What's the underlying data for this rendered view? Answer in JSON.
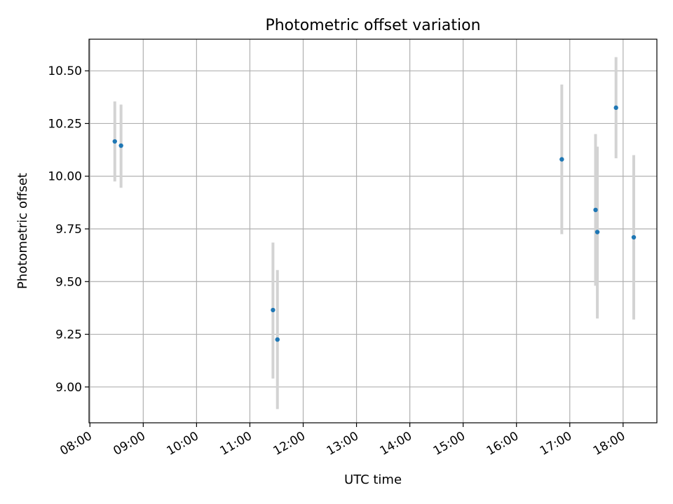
{
  "chart_data": {
    "type": "scatter",
    "title": "Photometric offset variation",
    "xlabel": "UTC time",
    "ylabel": "Photometric offset",
    "x_ticks": [
      "08:00",
      "09:00",
      "10:00",
      "11:00",
      "12:00",
      "13:00",
      "14:00",
      "15:00",
      "16:00",
      "17:00",
      "18:00"
    ],
    "y_ticks": [
      "9.00",
      "9.25",
      "9.50",
      "9.75",
      "10.00",
      "10.25",
      "10.50"
    ],
    "xlim": [
      "07:59",
      "18:38"
    ],
    "ylim": [
      8.83,
      10.65
    ],
    "grid": true,
    "points": [
      {
        "x": "08:28",
        "y": 10.165,
        "yerr_low": 9.975,
        "yerr_high": 10.355
      },
      {
        "x": "08:35",
        "y": 10.145,
        "yerr_low": 9.945,
        "yerr_high": 10.34
      },
      {
        "x": "11:26",
        "y": 9.365,
        "yerr_low": 9.04,
        "yerr_high": 9.685
      },
      {
        "x": "11:31",
        "y": 9.225,
        "yerr_low": 8.895,
        "yerr_high": 9.555
      },
      {
        "x": "16:51",
        "y": 10.08,
        "yerr_low": 9.725,
        "yerr_high": 10.435
      },
      {
        "x": "17:29",
        "y": 9.84,
        "yerr_low": 9.48,
        "yerr_high": 10.2
      },
      {
        "x": "17:31",
        "y": 9.735,
        "yerr_low": 9.325,
        "yerr_high": 10.14
      },
      {
        "x": "17:52",
        "y": 10.325,
        "yerr_low": 10.085,
        "yerr_high": 10.565
      },
      {
        "x": "18:12",
        "y": 9.71,
        "yerr_low": 9.32,
        "yerr_high": 10.1
      }
    ],
    "colors": {
      "marker": "#1f77b4",
      "errorbar": "#d3d3d3",
      "grid": "#b0b0b0",
      "axes": "#000000"
    }
  }
}
